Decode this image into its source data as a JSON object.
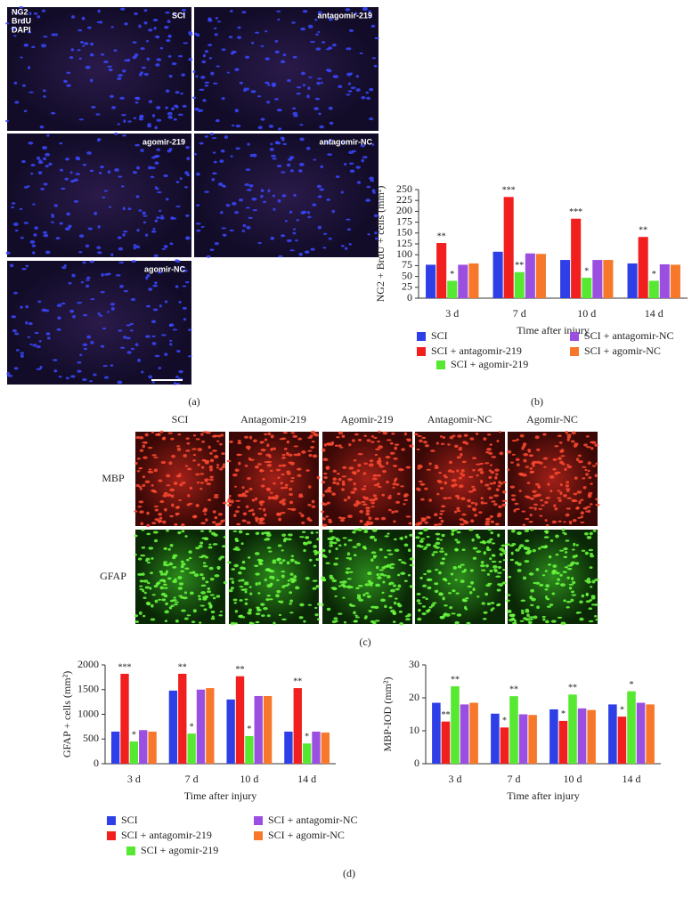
{
  "panel_a": {
    "label": "(a)",
    "stains": [
      "NG2",
      "BrdU",
      "DAPI"
    ],
    "tiles": [
      "SCI",
      "antagomir-219",
      "agomir-219",
      "antagomir-NC",
      "agomir-NC"
    ]
  },
  "panel_c": {
    "label": "(c)",
    "columns": [
      "SCI",
      "Antagomir-219",
      "Agomir-219",
      "Antagomir-NC",
      "Agomir-NC"
    ],
    "rows": [
      "MBP",
      "GFAP"
    ]
  },
  "panel_d_label": "(d)",
  "chart_data": [
    {
      "type": "bar",
      "panel_label": "(b)",
      "y_label": "NG2 + BrdU + cells (mm²)",
      "x_label": "Time after injury",
      "categories": [
        "3 d",
        "7 d",
        "10 d",
        "14 d"
      ],
      "ylim": [
        0,
        250
      ],
      "yticks": [
        0,
        25,
        50,
        75,
        100,
        125,
        150,
        175,
        200,
        225,
        250
      ],
      "series": [
        {
          "name": "SCI",
          "color": "#2f3fe8",
          "values": [
            77,
            107,
            88,
            80
          ]
        },
        {
          "name": "SCI + antagomir-219",
          "color": "#f21f1f",
          "values": [
            127,
            233,
            183,
            141
          ],
          "annotations": [
            "**",
            "***",
            "***",
            "**"
          ]
        },
        {
          "name": "SCI + agomir-219",
          "color": "#57e832",
          "values": [
            40,
            60,
            47,
            40
          ],
          "annotations": [
            "*",
            "**",
            "*",
            "*"
          ]
        },
        {
          "name": "SCI + antagomir-NC",
          "color": "#9b4fe0",
          "values": [
            77,
            103,
            88,
            78
          ]
        },
        {
          "name": "SCI + agomir-NC",
          "color": "#f7782a",
          "values": [
            80,
            102,
            88,
            77
          ]
        }
      ]
    },
    {
      "type": "bar",
      "y_label": "GFAP + cells (mm²)",
      "x_label": "Time after injury",
      "categories": [
        "3 d",
        "7 d",
        "10 d",
        "14 d"
      ],
      "ylim": [
        0,
        2000
      ],
      "yticks": [
        0,
        500,
        1000,
        1500,
        2000
      ],
      "series": [
        {
          "name": "SCI",
          "color": "#2f3fe8",
          "values": [
            650,
            1480,
            1300,
            650
          ]
        },
        {
          "name": "SCI + antagomir-219",
          "color": "#f21f1f",
          "values": [
            1820,
            1820,
            1770,
            1530
          ],
          "annotations": [
            "***",
            "**",
            "**",
            "**"
          ]
        },
        {
          "name": "SCI + agomir-219",
          "color": "#57e832",
          "values": [
            450,
            610,
            560,
            410
          ],
          "annotations": [
            "*",
            "*",
            "*",
            "*"
          ]
        },
        {
          "name": "SCI + antagomir-NC",
          "color": "#9b4fe0",
          "values": [
            680,
            1500,
            1370,
            650
          ]
        },
        {
          "name": "SCI + agomir-NC",
          "color": "#f7782a",
          "values": [
            650,
            1530,
            1370,
            630
          ]
        }
      ]
    },
    {
      "type": "bar",
      "y_label": "MBP-IOD (mm²)",
      "x_label": "Time after injury",
      "categories": [
        "3 d",
        "7 d",
        "10 d",
        "14 d"
      ],
      "ylim": [
        0,
        30
      ],
      "yticks": [
        0,
        10,
        20,
        30
      ],
      "series": [
        {
          "color": "#2f3fe8",
          "values": [
            18.5,
            15.2,
            16.5,
            18
          ]
        },
        {
          "color": "#f21f1f",
          "values": [
            12.8,
            11,
            13,
            14.3
          ],
          "annotations": [
            "**",
            "*",
            "*",
            "*"
          ]
        },
        {
          "color": "#57e832",
          "values": [
            23.5,
            20.5,
            21,
            22
          ],
          "annotations": [
            "**",
            "**",
            "**",
            "*"
          ]
        },
        {
          "color": "#9b4fe0",
          "values": [
            18,
            15,
            16.8,
            18.5
          ]
        },
        {
          "color": "#f7782a",
          "values": [
            18.5,
            14.8,
            16.3,
            18
          ]
        }
      ]
    }
  ]
}
